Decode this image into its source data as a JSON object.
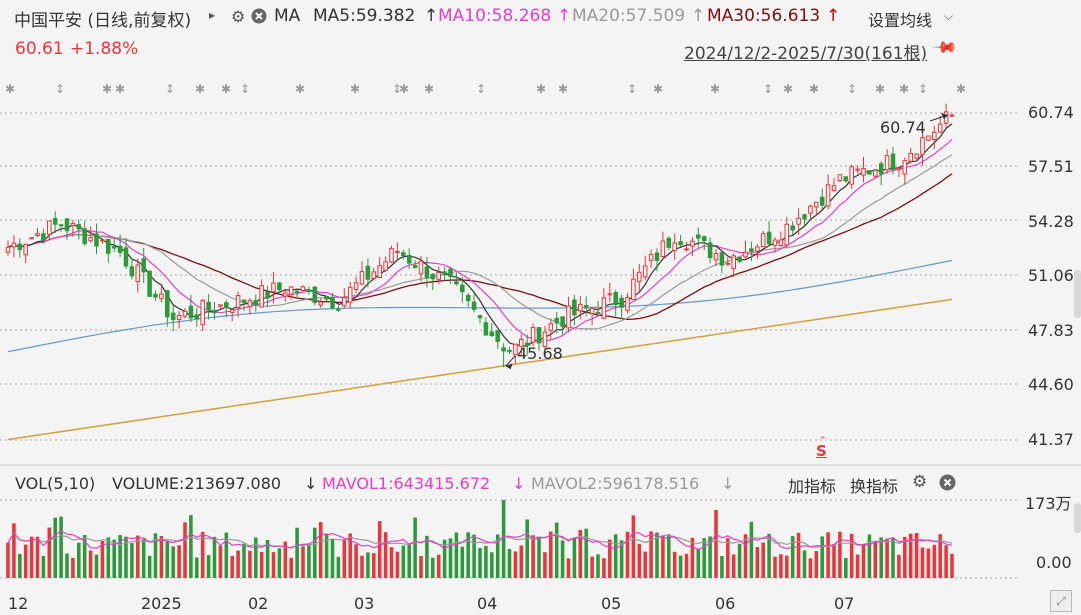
{
  "header": {
    "title": "中国平安 (日线,前复权)",
    "ma_label": "MA",
    "ma5": "MA5:59.382",
    "ma10": "MA10:58.268",
    "ma20": "MA20:57.509",
    "ma30": "MA30:56.613",
    "settings": "设置均线",
    "price": "60.61",
    "change": "+1.88%",
    "range": "2024/12/2-2025/7/30(161根)"
  },
  "colors": {
    "up": "#e8363a",
    "down": "#2a9a3a",
    "ma5": "#333333",
    "ma10": "#e040c8",
    "ma20": "#9a9a9a",
    "ma30": "#7a1010",
    "ma60": "#6699cc",
    "ma120": "#d4a040"
  },
  "volume_header": {
    "vol": "VOL(5,10)",
    "volume": "VOLUME:213697.080",
    "mavol1": "MAVOL1:643415.672",
    "mavol2": "MAVOL2:596178.516",
    "add": "加指标",
    "switch": "换指标",
    "max_label": "173万",
    "zero_label": "0.00"
  },
  "price_axis": [
    "60.74",
    "57.51",
    "54.28",
    "51.06",
    "47.83",
    "44.60",
    "41.37"
  ],
  "time_axis": [
    "12",
    "2025",
    "02",
    "03",
    "04",
    "05",
    "06",
    "07"
  ],
  "annotations": {
    "high": "60.74",
    "low": "45.68",
    "s_marker": "S"
  },
  "chart_data": {
    "type": "candlestick",
    "ylim": [
      41.37,
      60.74
    ],
    "xlabel": "",
    "ylabel": "",
    "high_point": 60.74,
    "low_point": 45.68,
    "key_closes": [
      {
        "date": "2024-12",
        "value": 52.8
      },
      {
        "date": "2024-12-18",
        "value": 54.2
      },
      {
        "date": "2025-01",
        "value": 52.5
      },
      {
        "date": "2025-01-14",
        "value": 48.6
      },
      {
        "date": "2025-02",
        "value": 49.5
      },
      {
        "date": "2025-02-14",
        "value": 50.4
      },
      {
        "date": "2025-03",
        "value": 49.6
      },
      {
        "date": "2025-03-18",
        "value": 52.6
      },
      {
        "date": "2025-04",
        "value": 50.5
      },
      {
        "date": "2025-04-07",
        "value": 46.6
      },
      {
        "date": "2025-04-14",
        "value": 48.6
      },
      {
        "date": "2025-05",
        "value": 49.8
      },
      {
        "date": "2025-05-15",
        "value": 53.6
      },
      {
        "date": "2025-06",
        "value": 52.1
      },
      {
        "date": "2025-06-20",
        "value": 54.0
      },
      {
        "date": "2025-07",
        "value": 56.8
      },
      {
        "date": "2025-07-16",
        "value": 58.0
      },
      {
        "date": "2025-07-30",
        "value": 60.61
      }
    ]
  }
}
